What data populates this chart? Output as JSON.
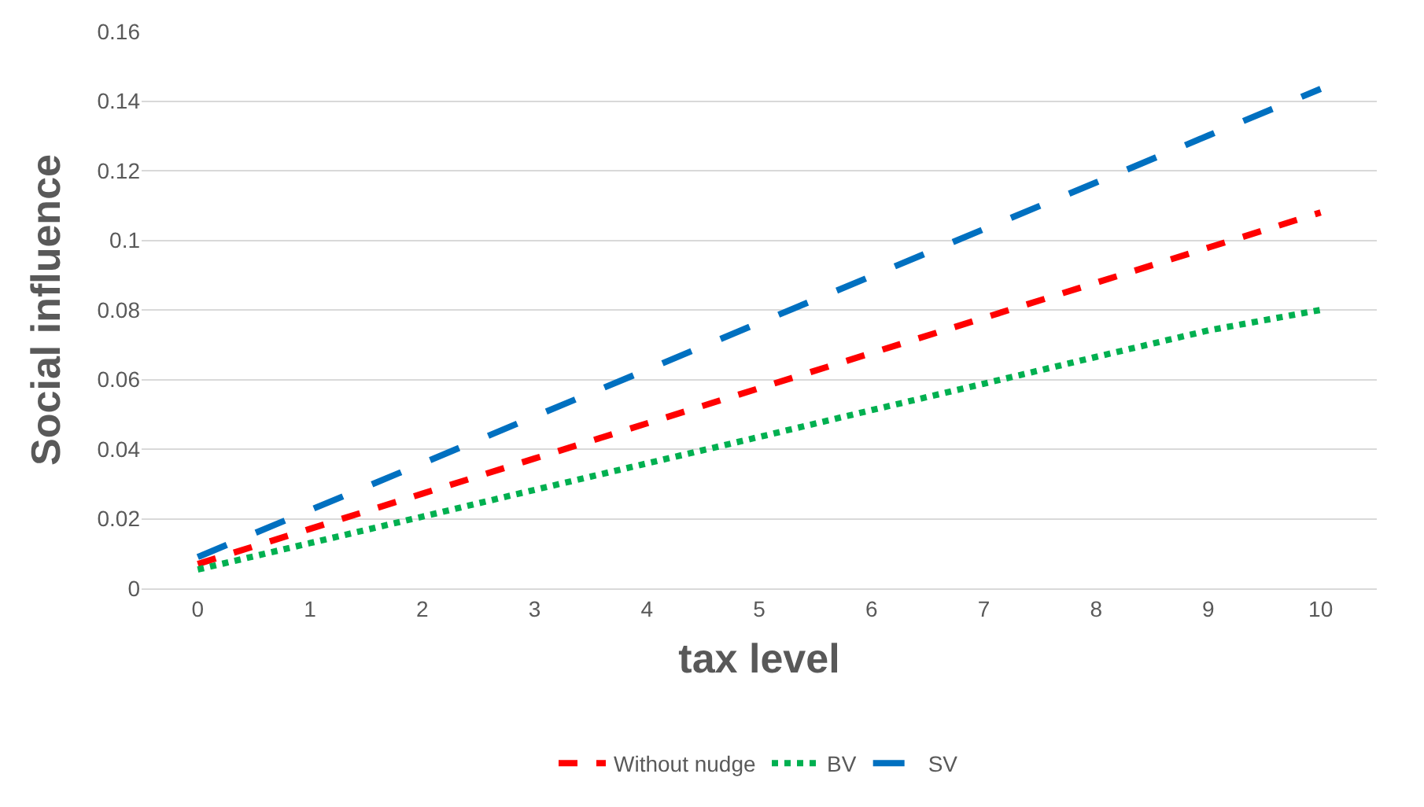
{
  "chart_data": {
    "type": "line",
    "xlabel": "tax level",
    "ylabel": "Social influence",
    "categories": [
      "0",
      "1",
      "2",
      "3",
      "4",
      "5",
      "6",
      "7",
      "8",
      "9",
      "10"
    ],
    "series": [
      {
        "name": "Without nudge",
        "color": "#ff0000",
        "line_style": "dashed",
        "values": [
          0.007,
          0.0171,
          0.0272,
          0.0373,
          0.0474,
          0.0575,
          0.0676,
          0.0777,
          0.0878,
          0.0979,
          0.108
        ]
      },
      {
        "name": "BV",
        "color": "#00b050",
        "line_style": "dotted",
        "values": [
          0.0054,
          0.013,
          0.0206,
          0.0283,
          0.0359,
          0.0435,
          0.0512,
          0.0588,
          0.0665,
          0.0741,
          0.08
        ]
      },
      {
        "name": "SV",
        "color": "#0070c0",
        "line_style": "longdash",
        "values": [
          0.009,
          0.0225,
          0.0359,
          0.0494,
          0.0628,
          0.0763,
          0.0897,
          0.1032,
          0.1166,
          0.1301,
          0.1435
        ]
      }
    ],
    "ylim": [
      0,
      0.16
    ],
    "yticks": [
      0,
      0.02,
      0.04,
      0.06,
      0.08,
      0.1,
      0.12,
      0.14,
      0.16
    ],
    "grid": "y",
    "legend": "bottom",
    "marker": "none"
  }
}
